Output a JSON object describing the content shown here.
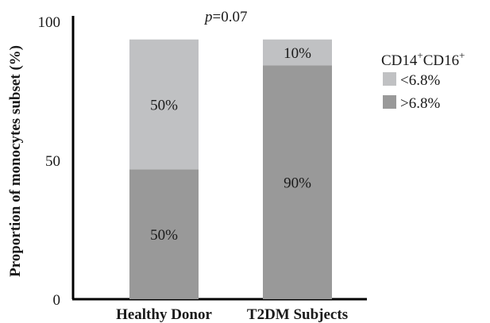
{
  "chart_data": {
    "type": "bar",
    "stacked": true,
    "ylabel": "Proportion of monocytes subset (%)",
    "yticks": [
      "0",
      "50",
      "100"
    ],
    "ylim": [
      0,
      100
    ],
    "categories": [
      "Healthy Donor",
      "T2DM Subjects"
    ],
    "series": [
      {
        "name": ">6.8%",
        "values": [
          50,
          90
        ],
        "labels": [
          "50%",
          "90%"
        ],
        "color": "#999999"
      },
      {
        "name": "<6.8%",
        "values": [
          50,
          10
        ],
        "labels": [
          "50%",
          "10%"
        ],
        "color": "#c0c1c3"
      }
    ],
    "annotation": {
      "italic": "p",
      "text": "=0.07"
    },
    "legend": {
      "title": {
        "part1": "CD14",
        "sup1": "+",
        "part2": "CD16",
        "sup2": "+"
      },
      "placement": "right",
      "items": [
        "<6.8%",
        ">6.8%"
      ]
    }
  }
}
